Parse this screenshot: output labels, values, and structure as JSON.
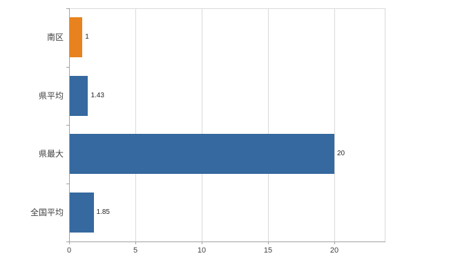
{
  "chart_data": {
    "type": "bar",
    "orientation": "horizontal",
    "title": "",
    "categories": [
      "南区",
      "県平均",
      "県最大",
      "全国平均"
    ],
    "values": [
      1,
      1.43,
      20,
      1.85
    ],
    "data_labels": [
      "1",
      "1.43",
      "20",
      "1.85"
    ],
    "bar_colors": [
      "#e8821e",
      "#35699f",
      "#35699f",
      "#35699f"
    ],
    "x_ticks": [
      "0",
      "5",
      "10",
      "15",
      "20"
    ],
    "x_tick_values": [
      0,
      5,
      10,
      15,
      20
    ],
    "xlim": [
      0,
      23.8
    ],
    "grid": "vertical",
    "legend": "none",
    "colors": {
      "grid": "#d9d9d9",
      "axis": "#a0a0a0",
      "label": "#3f3f3f",
      "background": "#ffffff"
    }
  }
}
